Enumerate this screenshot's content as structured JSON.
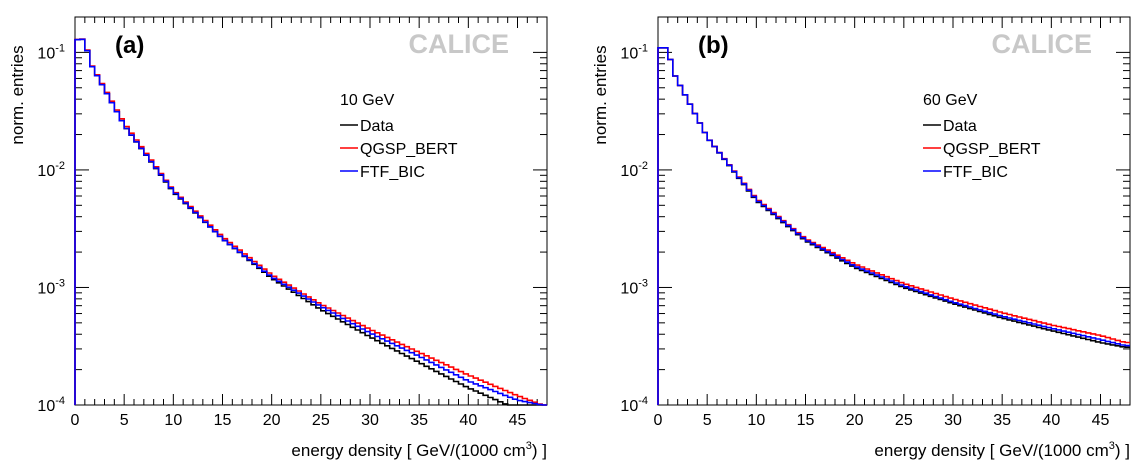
{
  "chart_data": [
    {
      "type": "line",
      "panel_label": "(a)",
      "watermark": "CALICE",
      "xlabel_main": "energy density [ GeV/(1000 cm",
      "xlabel_sup": "3",
      "xlabel_end": ") ]",
      "ylabel": "norm. entries",
      "xlim": [
        0,
        48
      ],
      "ylim": [
        0.0001,
        0.2
      ],
      "y_scale": "log",
      "x_ticks": [
        "0",
        "5",
        "10",
        "15",
        "20",
        "25",
        "30",
        "35",
        "40",
        "45"
      ],
      "y_ticks": [
        {
          "base": "10",
          "exp": "-1"
        },
        {
          "base": "10",
          "exp": "-2"
        },
        {
          "base": "10",
          "exp": "-3"
        },
        {
          "base": "10",
          "exp": "-4"
        }
      ],
      "legend_title": "10 GeV",
      "legend_position": "upper-right",
      "bin_width": 0.5,
      "x": [
        0,
        5,
        10,
        15,
        20,
        25,
        30,
        35,
        40,
        45,
        47.5
      ],
      "series": [
        {
          "name": "Data",
          "color": "#000000",
          "values": [
            0.14,
            0.024,
            0.0065,
            0.0026,
            0.0012,
            0.00065,
            0.00038,
            0.00023,
            0.00014,
            9.2e-05,
            9e-05
          ]
        },
        {
          "name": "QGSP_BERT",
          "color": "#ff0000",
          "values": [
            0.14,
            0.025,
            0.0067,
            0.0027,
            0.00128,
            0.00072,
            0.00044,
            0.00028,
            0.00018,
            0.00012,
            0.0001
          ]
        },
        {
          "name": "FTF_BIC",
          "color": "#0000ff",
          "values": [
            0.14,
            0.024,
            0.0066,
            0.0026,
            0.00123,
            0.00069,
            0.00041,
            0.00026,
            0.00016,
            0.00011,
            0.0001
          ]
        }
      ]
    },
    {
      "type": "line",
      "panel_label": "(b)",
      "watermark": "CALICE",
      "xlabel_main": "energy density [ GeV/(1000 cm",
      "xlabel_sup": "3",
      "xlabel_end": ") ]",
      "ylabel": "norm. entries",
      "xlim": [
        0,
        48
      ],
      "ylim": [
        0.0001,
        0.2
      ],
      "y_scale": "log",
      "x_ticks": [
        "0",
        "5",
        "10",
        "15",
        "20",
        "25",
        "30",
        "35",
        "40",
        "45"
      ],
      "y_ticks": [
        {
          "base": "10",
          "exp": "-1"
        },
        {
          "base": "10",
          "exp": "-2"
        },
        {
          "base": "10",
          "exp": "-3"
        },
        {
          "base": "10",
          "exp": "-4"
        }
      ],
      "legend_title": "60 GeV",
      "legend_position": "upper-right",
      "bin_width": 0.5,
      "x": [
        0,
        5,
        10,
        15,
        20,
        25,
        30,
        35,
        40,
        45,
        47.5
      ],
      "series": [
        {
          "name": "Data",
          "color": "#000000",
          "values": [
            0.12,
            0.019,
            0.0055,
            0.0025,
            0.00148,
            0.001,
            0.00073,
            0.00055,
            0.00043,
            0.00034,
            0.00031
          ]
        },
        {
          "name": "QGSP_BERT",
          "color": "#ff0000",
          "values": [
            0.12,
            0.019,
            0.0057,
            0.0026,
            0.00158,
            0.00108,
            0.0008,
            0.00061,
            0.00048,
            0.00039,
            0.00034
          ]
        },
        {
          "name": "FTF_BIC",
          "color": "#0000ff",
          "values": [
            0.12,
            0.019,
            0.0056,
            0.00255,
            0.00152,
            0.00103,
            0.00075,
            0.00057,
            0.00045,
            0.00036,
            0.00032
          ]
        }
      ]
    }
  ]
}
